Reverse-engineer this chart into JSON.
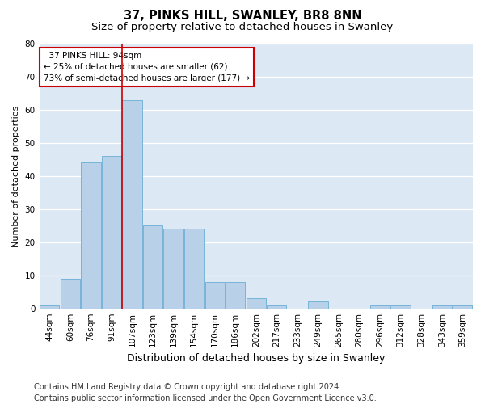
{
  "title1": "37, PINKS HILL, SWANLEY, BR8 8NN",
  "title2": "Size of property relative to detached houses in Swanley",
  "xlabel": "Distribution of detached houses by size in Swanley",
  "ylabel": "Number of detached properties",
  "categories": [
    "44sqm",
    "60sqm",
    "76sqm",
    "91sqm",
    "107sqm",
    "123sqm",
    "139sqm",
    "154sqm",
    "170sqm",
    "186sqm",
    "202sqm",
    "217sqm",
    "233sqm",
    "249sqm",
    "265sqm",
    "280sqm",
    "296sqm",
    "312sqm",
    "328sqm",
    "343sqm",
    "359sqm"
  ],
  "values": [
    1,
    9,
    44,
    46,
    63,
    25,
    24,
    24,
    8,
    8,
    3,
    1,
    0,
    2,
    0,
    0,
    1,
    1,
    0,
    1,
    1
  ],
  "bar_color": "#b8d0e8",
  "bar_edge_color": "#6aaed6",
  "vline_x_index": 3.5,
  "vline_color": "#cc0000",
  "annotation_text": "  37 PINKS HILL: 94sqm\n← 25% of detached houses are smaller (62)\n73% of semi-detached houses are larger (177) →",
  "annotation_box_color": "#ffffff",
  "annotation_box_edge_color": "#cc0000",
  "footnote_line1": "Contains HM Land Registry data © Crown copyright and database right 2024.",
  "footnote_line2": "Contains public sector information licensed under the Open Government Licence v3.0.",
  "ylim": [
    0,
    80
  ],
  "yticks": [
    0,
    10,
    20,
    30,
    40,
    50,
    60,
    70,
    80
  ],
  "background_color": "#dce9f5",
  "title1_fontsize": 10.5,
  "title2_fontsize": 9.5,
  "xlabel_fontsize": 9,
  "ylabel_fontsize": 8,
  "tick_fontsize": 7.5,
  "annotation_fontsize": 7.5,
  "footnote_fontsize": 7
}
